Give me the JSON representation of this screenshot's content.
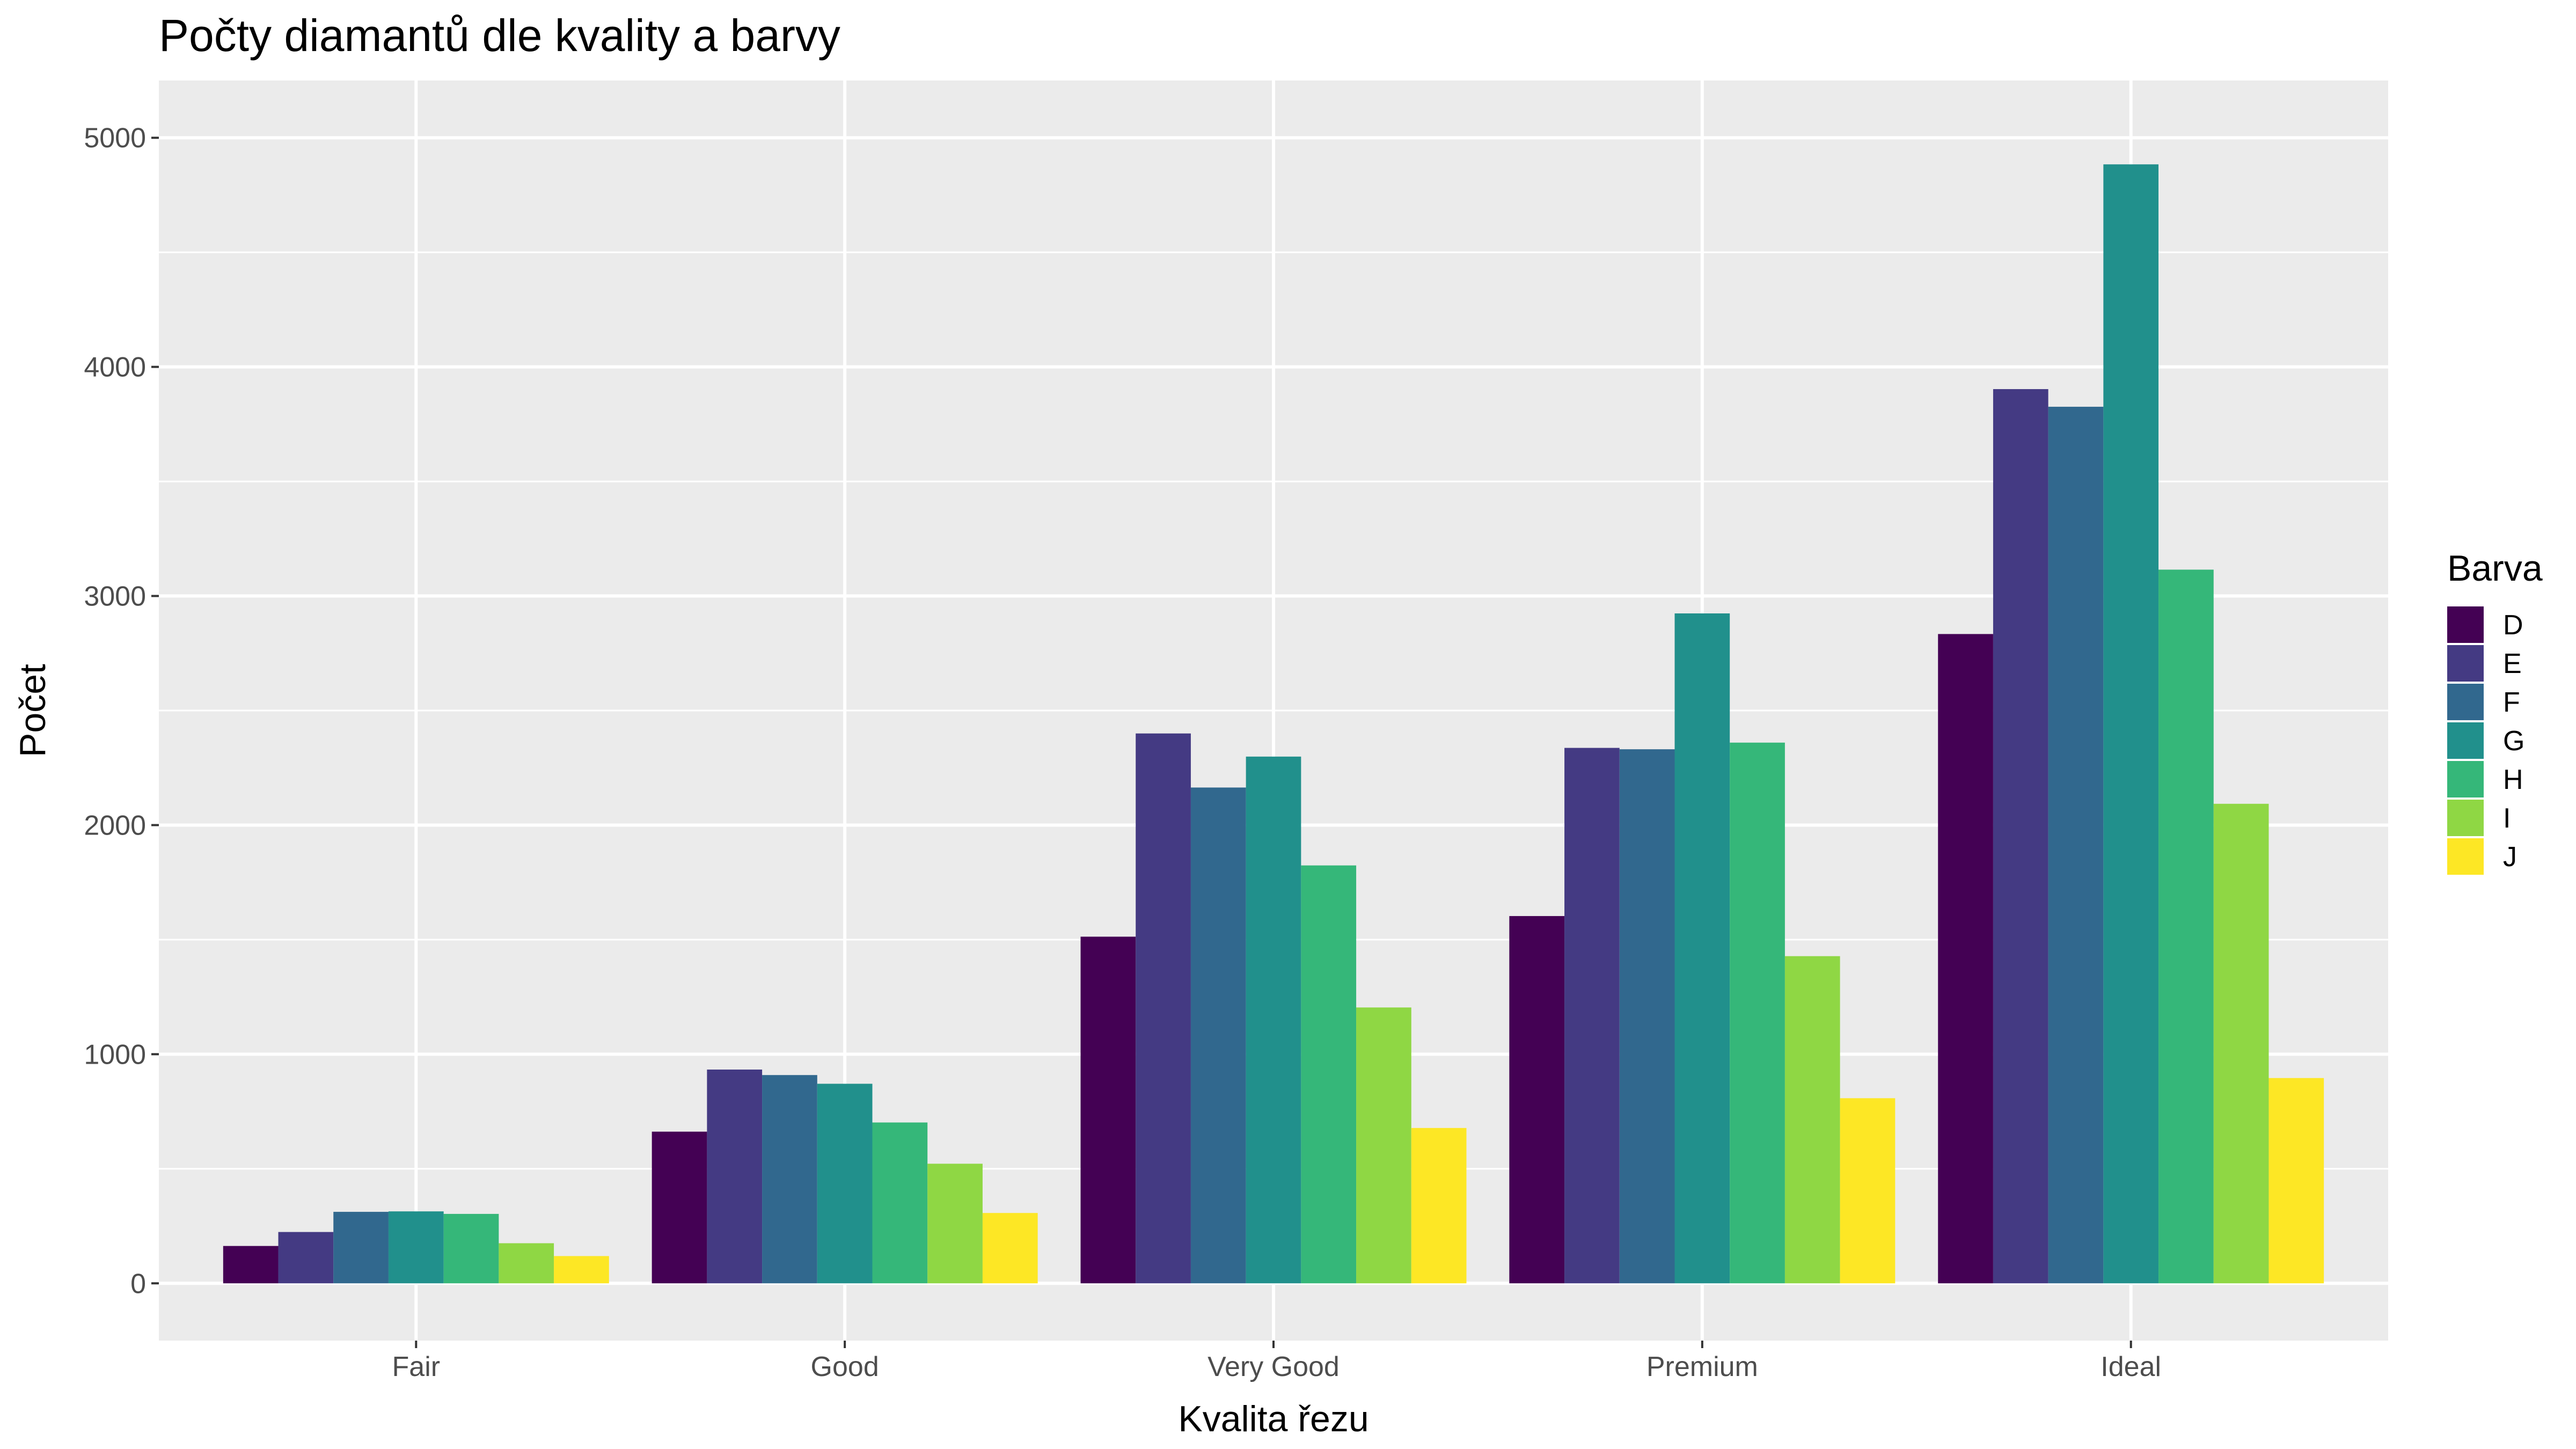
{
  "chart_data": {
    "type": "bar",
    "title": "Počty diamantů dle kvality a barvy",
    "xlabel": "Kvalita řezu",
    "ylabel": "Počet",
    "categories": [
      "Fair",
      "Good",
      "Very Good",
      "Premium",
      "Ideal"
    ],
    "ylim": [
      -250,
      5250
    ],
    "yticks": [
      0,
      1000,
      2000,
      3000,
      4000,
      5000
    ],
    "grid": true,
    "legend": {
      "title": "Barva",
      "position": "right"
    },
    "series": [
      {
        "name": "D",
        "color": "#440154",
        "values": [
          163,
          662,
          1513,
          1603,
          2834
        ]
      },
      {
        "name": "E",
        "color": "#443A83",
        "values": [
          224,
          933,
          2400,
          2337,
          3903
        ]
      },
      {
        "name": "F",
        "color": "#31688E",
        "values": [
          312,
          909,
          2164,
          2331,
          3826
        ]
      },
      {
        "name": "G",
        "color": "#21908C",
        "values": [
          314,
          871,
          2299,
          2924,
          4884
        ]
      },
      {
        "name": "H",
        "color": "#35B779",
        "values": [
          303,
          702,
          1824,
          2360,
          3115
        ]
      },
      {
        "name": "I",
        "color": "#8FD744",
        "values": [
          175,
          522,
          1204,
          1428,
          2093
        ]
      },
      {
        "name": "J",
        "color": "#FDE725",
        "values": [
          119,
          307,
          678,
          808,
          896
        ]
      }
    ]
  },
  "colors": {
    "panel_background": "#EBEBEB",
    "grid_line": "#FFFFFF"
  }
}
